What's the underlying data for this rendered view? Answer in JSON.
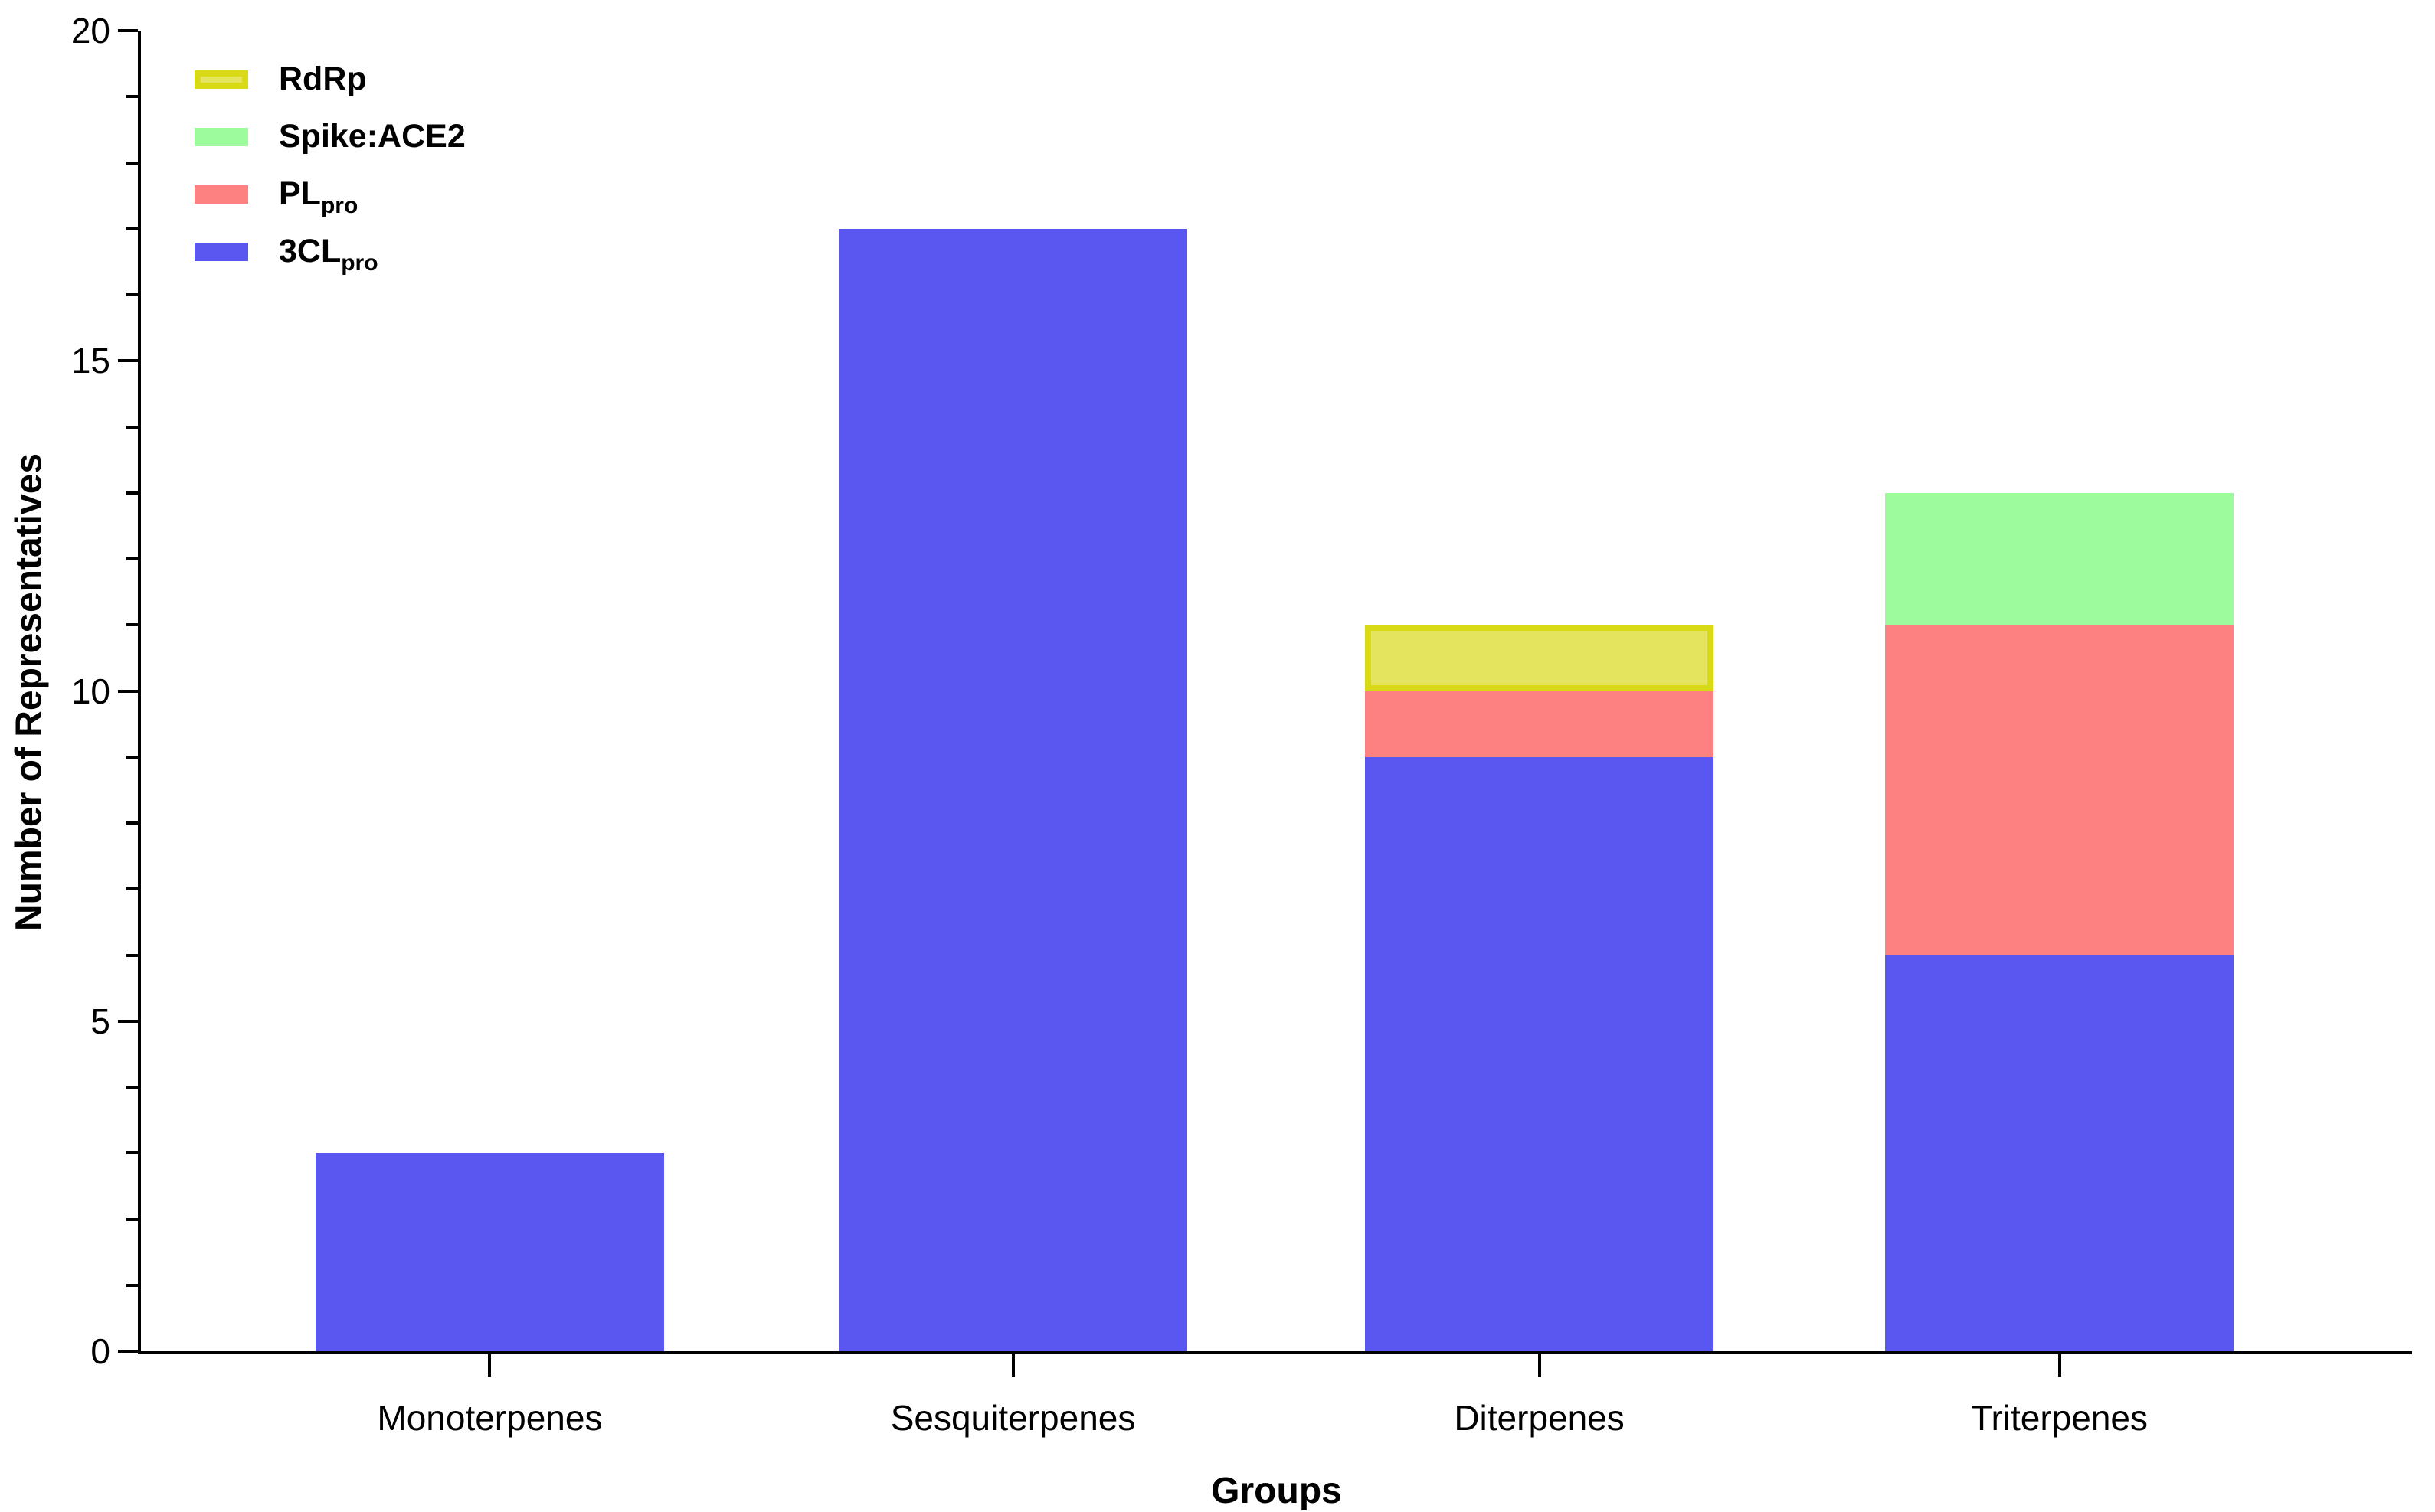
{
  "figure": {
    "background_color": "#ffffff",
    "axis_color": "#000000",
    "text_color": "#000000"
  },
  "chart_data": {
    "type": "bar",
    "stacked": true,
    "title": "",
    "xlabel": "Groups",
    "ylabel": "Number of Representatives",
    "categories": [
      "Monoterpenes",
      "Sesquiterpenes",
      "Diterpenes",
      "Triterpenes"
    ],
    "series": [
      {
        "name": "3CLpro",
        "label": "3CL",
        "label_sub": "pro",
        "color": "#5957f0",
        "edge_color": "",
        "values": [
          3,
          17,
          9,
          6
        ]
      },
      {
        "name": "PLpro",
        "label": "PL",
        "label_sub": "pro",
        "color": "#fc8180",
        "edge_color": "",
        "values": [
          0,
          0,
          1,
          5
        ]
      },
      {
        "name": "Spike:ACE2",
        "label": "Spike:ACE2",
        "label_sub": "",
        "color": "#9dfb9e",
        "edge_color": "",
        "values": [
          0,
          0,
          0,
          2
        ]
      },
      {
        "name": "RdRp",
        "label": "RdRp",
        "label_sub": "",
        "color": "#e5e45e",
        "edge_color": "#d9da16",
        "values": [
          0,
          0,
          1,
          0
        ]
      }
    ],
    "totals": [
      3,
      17,
      11,
      13
    ],
    "ylim": [
      0,
      20
    ],
    "y_ticks_major": [
      0,
      5,
      10,
      15,
      20
    ],
    "y_minor_step": 1,
    "grid": false,
    "legend_position": "upper-left",
    "legend_order": [
      "RdRp",
      "Spike:ACE2",
      "PLpro",
      "3CLpro"
    ]
  }
}
